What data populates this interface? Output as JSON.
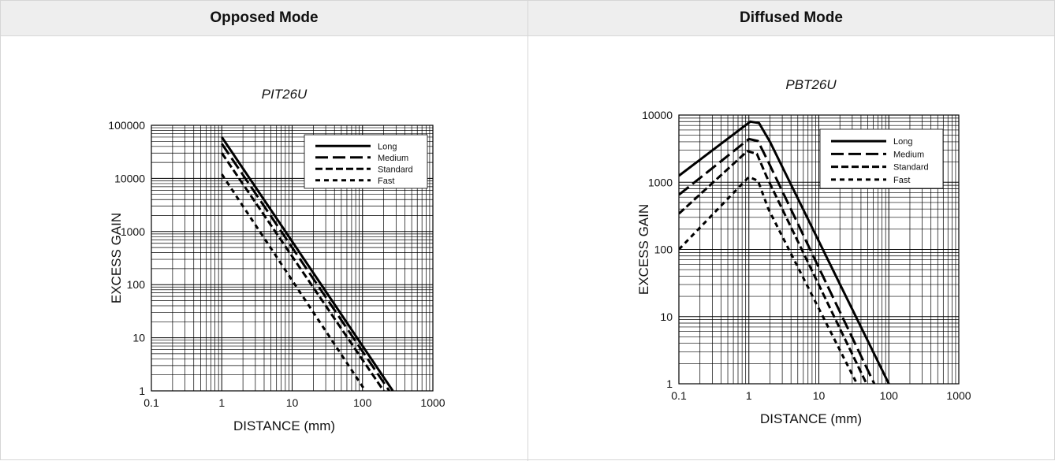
{
  "table": {
    "headers": [
      "Opposed Mode",
      "Diffused Mode"
    ]
  },
  "chart_data": [
    {
      "type": "line",
      "title": "PIT26U",
      "xlabel": "DISTANCE (mm)",
      "ylabel": "EXCESS GAIN",
      "x_scale": "log",
      "y_scale": "log",
      "xlim": [
        0.1,
        1000
      ],
      "ylim": [
        1,
        100000
      ],
      "x_ticks": [
        "0.1",
        "1",
        "10",
        "100",
        "1000"
      ],
      "y_ticks": [
        "1",
        "10",
        "100",
        "1000",
        "10000",
        "100000"
      ],
      "grid": true,
      "legend_position": "top-right",
      "series": [
        {
          "name": "Long",
          "dash": "solid",
          "points": [
            [
              1,
              60000
            ],
            [
              270,
              1
            ]
          ]
        },
        {
          "name": "Medium",
          "dash": "long-dash",
          "points": [
            [
              1,
              45000
            ],
            [
              240,
              1
            ]
          ]
        },
        {
          "name": "Standard",
          "dash": "dash",
          "points": [
            [
              1,
              30000
            ],
            [
              200,
              1
            ]
          ]
        },
        {
          "name": "Fast",
          "dash": "short-dash",
          "points": [
            [
              1,
              12000
            ],
            [
              110,
              1
            ]
          ]
        }
      ]
    },
    {
      "type": "line",
      "title": "PBT26U",
      "xlabel": "DISTANCE (mm)",
      "ylabel": "EXCESS GAIN",
      "x_scale": "log",
      "y_scale": "log",
      "xlim": [
        0.1,
        1000
      ],
      "ylim": [
        1,
        10000
      ],
      "x_ticks": [
        "0.1",
        "1",
        "10",
        "100",
        "1000"
      ],
      "y_ticks": [
        "1",
        "10",
        "100",
        "1000",
        "10000"
      ],
      "grid": true,
      "legend_position": "top-right",
      "series": [
        {
          "name": "Long",
          "dash": "solid",
          "points": [
            [
              0.1,
              1250
            ],
            [
              1.05,
              8000
            ],
            [
              1.4,
              7600
            ],
            [
              2.0,
              4000
            ],
            [
              100,
              1
            ]
          ]
        },
        {
          "name": "Medium",
          "dash": "long-dash",
          "points": [
            [
              0.1,
              650
            ],
            [
              1.0,
              4400
            ],
            [
              1.35,
              4100
            ],
            [
              1.9,
              2000
            ],
            [
              62,
              1
            ]
          ]
        },
        {
          "name": "Standard",
          "dash": "dash",
          "points": [
            [
              0.1,
              340
            ],
            [
              0.95,
              2900
            ],
            [
              1.3,
              2650
            ],
            [
              1.8,
              1200
            ],
            [
              48,
              1
            ]
          ]
        },
        {
          "name": "Fast",
          "dash": "short-dash",
          "points": [
            [
              0.1,
              100
            ],
            [
              1.0,
              1200
            ],
            [
              1.35,
              1050
            ],
            [
              1.9,
              400
            ],
            [
              35,
              1
            ]
          ]
        }
      ]
    }
  ]
}
